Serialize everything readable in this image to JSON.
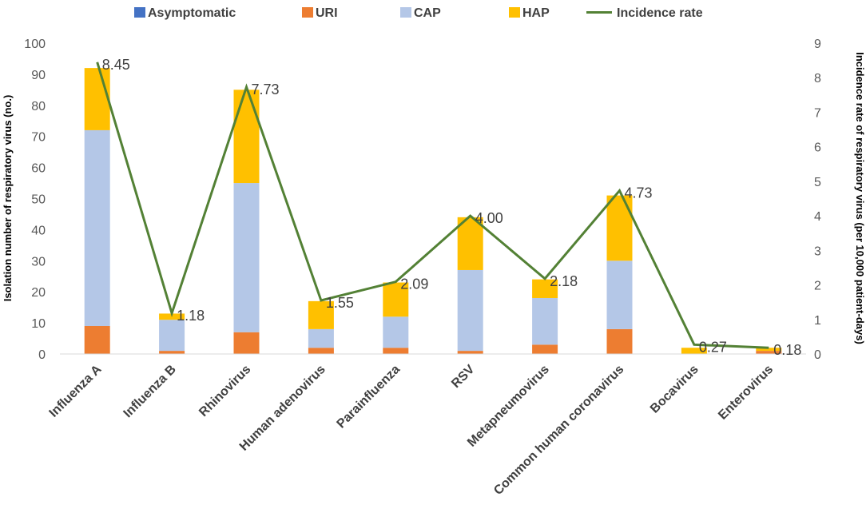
{
  "chart_data": {
    "type": "bar",
    "stacked": true,
    "categories": [
      "Influenza A",
      "Influenza B",
      "Rhinovirus",
      "Human adenovirus",
      "Parainfluenza",
      "RSV",
      "Metapneumovirus",
      "Common human coronavirus",
      "Bocavirus",
      "Enterovirus"
    ],
    "series": [
      {
        "name": "Asymptomatic",
        "color": "#4472C4",
        "values": [
          0,
          0,
          0,
          0,
          0,
          0,
          0,
          0,
          0,
          0
        ]
      },
      {
        "name": "URI",
        "color": "#ED7D31",
        "values": [
          9,
          1,
          7,
          2,
          2,
          1,
          3,
          8,
          0,
          1
        ]
      },
      {
        "name": "CAP",
        "color": "#B4C7E7",
        "values": [
          63,
          10,
          48,
          6,
          10,
          26,
          15,
          22,
          0,
          0
        ]
      },
      {
        "name": "HAP",
        "color": "#FFC000",
        "values": [
          20,
          2,
          30,
          9,
          11,
          17,
          6,
          21,
          2,
          1
        ]
      }
    ],
    "line_series": {
      "name": "Incidence rate",
      "color": "#538135",
      "values": [
        8.45,
        1.18,
        7.73,
        1.55,
        2.09,
        4.0,
        2.18,
        4.73,
        0.27,
        0.18
      ],
      "labels": [
        "8.45",
        "1.18",
        "7.73",
        "1.55",
        "2.09",
        "4.00",
        "2.18",
        "4.73",
        "0.27",
        "0.18"
      ]
    },
    "ylabel": "Isolation number of respiratory virus (no.)",
    "y2label": "Incidence rate of respiratory virus (per 10,000 patient-days)",
    "ylim": [
      0,
      100
    ],
    "y2lim": [
      0,
      9
    ],
    "yticks": [
      "0",
      "10",
      "20",
      "30",
      "40",
      "50",
      "60",
      "70",
      "80",
      "90",
      "100"
    ],
    "y2ticks": [
      "0",
      "1",
      "2",
      "3",
      "4",
      "5",
      "6",
      "7",
      "8",
      "9"
    ],
    "legend_position": "top",
    "grid": false
  }
}
